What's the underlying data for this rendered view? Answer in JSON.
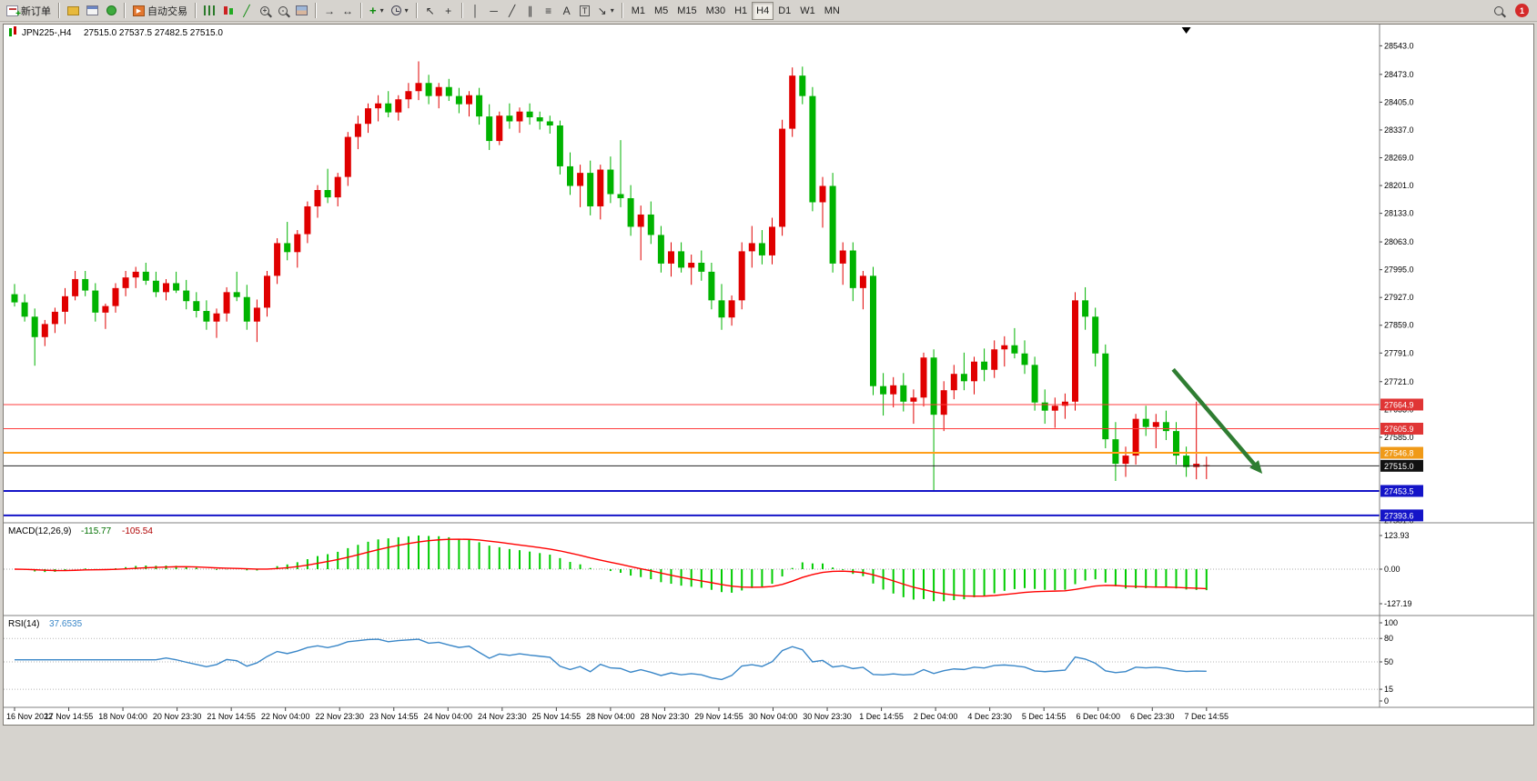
{
  "toolbar": {
    "new_order_label": "新订单",
    "auto_trading_label": "自动交易",
    "timeframes": [
      "M1",
      "M5",
      "M15",
      "M30",
      "H1",
      "H4",
      "D1",
      "W1",
      "MN"
    ],
    "active_timeframe": "H4",
    "notification_count": "1",
    "icons": {
      "play": "▶",
      "line_chart": "╱",
      "plus": "+",
      "minus": "-",
      "auto_scroll": "→",
      "chart_shift": "↔",
      "cursor": "↖",
      "crosshair": "+",
      "vline": "│",
      "hline": "─",
      "trendline": "╱",
      "channel": "∥",
      "fibonacci": "≡",
      "text": "A",
      "label": "T",
      "arrows": "↘",
      "caret": "▾"
    }
  },
  "chart_data": {
    "type": "candlestick",
    "symbol": "JPN225-",
    "period": "H4",
    "title": "JPN225-,H4",
    "ohlc_text": "27515.0 27537.5 27482.5 27515.0",
    "price_range": {
      "min": 27380,
      "max": 28595
    },
    "price_axis_labels": [
      28543,
      28473,
      28405,
      28337,
      28269,
      28201,
      28133,
      28063,
      27995,
      27927,
      27859,
      27791,
      27721,
      27653,
      27585,
      27381
    ],
    "time_labels": [
      "16 Nov 2022",
      "17 Nov 14:55",
      "18 Nov 04:00",
      "20 Nov 23:30",
      "21 Nov 14:55",
      "22 Nov 04:00",
      "22 Nov 23:30",
      "23 Nov 14:55",
      "24 Nov 04:00",
      "24 Nov 23:30",
      "25 Nov 14:55",
      "28 Nov 04:00",
      "28 Nov 23:30",
      "29 Nov 14:55",
      "30 Nov 04:00",
      "30 Nov 23:30",
      "1 Dec 14:55",
      "2 Dec 04:00",
      "4 Dec 23:30",
      "5 Dec 14:55",
      "6 Dec 04:00",
      "6 Dec 23:30",
      "7 Dec 14:55"
    ],
    "colors": {
      "up": "#e00000",
      "down": "#00b300",
      "macd_hist": "#00cc00",
      "macd_signal": "#ff0000",
      "rsi_line": "#3a87c8",
      "arrow": "#2f7d32"
    },
    "candles": [
      [
        27935,
        27960,
        27905,
        27915
      ],
      [
        27915,
        27935,
        27868,
        27880
      ],
      [
        27880,
        27900,
        27760,
        27830
      ],
      [
        27830,
        27872,
        27808,
        27862
      ],
      [
        27862,
        27902,
        27840,
        27892
      ],
      [
        27892,
        27950,
        27862,
        27930
      ],
      [
        27930,
        27992,
        27920,
        27972
      ],
      [
        27972,
        27992,
        27930,
        27944
      ],
      [
        27944,
        27962,
        27868,
        27890
      ],
      [
        27890,
        27912,
        27850,
        27906
      ],
      [
        27906,
        27962,
        27890,
        27950
      ],
      [
        27950,
        27992,
        27930,
        27976
      ],
      [
        27976,
        28002,
        27950,
        27990
      ],
      [
        27990,
        28012,
        27958,
        27968
      ],
      [
        27968,
        27990,
        27928,
        27940
      ],
      [
        27940,
        27972,
        27920,
        27962
      ],
      [
        27962,
        27990,
        27938,
        27944
      ],
      [
        27944,
        27970,
        27898,
        27918
      ],
      [
        27918,
        27940,
        27878,
        27894
      ],
      [
        27894,
        27920,
        27848,
        27868
      ],
      [
        27868,
        27900,
        27828,
        27888
      ],
      [
        27888,
        27952,
        27868,
        27940
      ],
      [
        27940,
        27990,
        27918,
        27928
      ],
      [
        27928,
        27958,
        27848,
        27868
      ],
      [
        27868,
        27922,
        27818,
        27902
      ],
      [
        27902,
        27992,
        27880,
        27980
      ],
      [
        27980,
        28072,
        27960,
        28060
      ],
      [
        28060,
        28112,
        28018,
        28038
      ],
      [
        28038,
        28092,
        28000,
        28082
      ],
      [
        28082,
        28162,
        28060,
        28150
      ],
      [
        28150,
        28202,
        28122,
        28190
      ],
      [
        28190,
        28242,
        28158,
        28172
      ],
      [
        28172,
        28232,
        28150,
        28222
      ],
      [
        28222,
        28332,
        28200,
        28320
      ],
      [
        28320,
        28372,
        28290,
        28352
      ],
      [
        28352,
        28402,
        28330,
        28390
      ],
      [
        28390,
        28422,
        28358,
        28402
      ],
      [
        28402,
        28432,
        28368,
        28380
      ],
      [
        28380,
        28422,
        28360,
        28412
      ],
      [
        28412,
        28452,
        28390,
        28432
      ],
      [
        28432,
        28505,
        28410,
        28452
      ],
      [
        28452,
        28472,
        28400,
        28420
      ],
      [
        28420,
        28452,
        28390,
        28442
      ],
      [
        28442,
        28462,
        28408,
        28420
      ],
      [
        28420,
        28440,
        28378,
        28400
      ],
      [
        28400,
        28432,
        28370,
        28422
      ],
      [
        28422,
        28440,
        28350,
        28370
      ],
      [
        28370,
        28400,
        28288,
        28310
      ],
      [
        28310,
        28382,
        28300,
        28372
      ],
      [
        28372,
        28402,
        28340,
        28358
      ],
      [
        28358,
        28392,
        28330,
        28382
      ],
      [
        28382,
        28402,
        28350,
        28368
      ],
      [
        28368,
        28382,
        28338,
        28358
      ],
      [
        28358,
        28372,
        28328,
        28348
      ],
      [
        28348,
        28360,
        28228,
        28248
      ],
      [
        28248,
        28282,
        28178,
        28200
      ],
      [
        28200,
        28252,
        28148,
        28232
      ],
      [
        28232,
        28262,
        28128,
        28150
      ],
      [
        28150,
        28252,
        28118,
        28240
      ],
      [
        28240,
        28272,
        28158,
        28180
      ],
      [
        28180,
        28312,
        28148,
        28170
      ],
      [
        28170,
        28202,
        28078,
        28100
      ],
      [
        28100,
        28152,
        28018,
        28130
      ],
      [
        28130,
        28162,
        28058,
        28080
      ],
      [
        28080,
        28102,
        27988,
        28010
      ],
      [
        28010,
        28062,
        27978,
        28040
      ],
      [
        28040,
        28062,
        27988,
        28000
      ],
      [
        28000,
        28032,
        27958,
        28012
      ],
      [
        28012,
        28042,
        27968,
        27990
      ],
      [
        27990,
        28012,
        27898,
        27920
      ],
      [
        27920,
        27960,
        27848,
        27878
      ],
      [
        27878,
        27932,
        27858,
        27920
      ],
      [
        27920,
        28062,
        27898,
        28040
      ],
      [
        28040,
        28102,
        28000,
        28060
      ],
      [
        28060,
        28092,
        28008,
        28030
      ],
      [
        28030,
        28122,
        28008,
        28100
      ],
      [
        28100,
        28362,
        28078,
        28340
      ],
      [
        28340,
        28490,
        28320,
        28470
      ],
      [
        28470,
        28492,
        28400,
        28420
      ],
      [
        28420,
        28442,
        28138,
        28160
      ],
      [
        28160,
        28222,
        28098,
        28200
      ],
      [
        28200,
        28232,
        27988,
        28010
      ],
      [
        28010,
        28062,
        27958,
        28042
      ],
      [
        28042,
        28062,
        27918,
        27950
      ],
      [
        27950,
        27992,
        27898,
        27980
      ],
      [
        27980,
        28002,
        27688,
        27710
      ],
      [
        27710,
        27742,
        27638,
        27690
      ],
      [
        27690,
        27732,
        27658,
        27712
      ],
      [
        27712,
        27742,
        27648,
        27672
      ],
      [
        27672,
        27702,
        27618,
        27682
      ],
      [
        27682,
        27792,
        27660,
        27780
      ],
      [
        27780,
        27800,
        27452,
        27640
      ],
      [
        27640,
        27722,
        27600,
        27700
      ],
      [
        27700,
        27762,
        27678,
        27740
      ],
      [
        27740,
        27792,
        27700,
        27722
      ],
      [
        27722,
        27782,
        27690,
        27770
      ],
      [
        27770,
        27802,
        27722,
        27750
      ],
      [
        27750,
        27822,
        27730,
        27800
      ],
      [
        27800,
        27832,
        27758,
        27810
      ],
      [
        27810,
        27852,
        27778,
        27790
      ],
      [
        27790,
        27822,
        27740,
        27762
      ],
      [
        27762,
        27782,
        27650,
        27670
      ],
      [
        27670,
        27702,
        27618,
        27650
      ],
      [
        27650,
        27682,
        27608,
        27662
      ],
      [
        27662,
        27692,
        27630,
        27672
      ],
      [
        27672,
        27940,
        27650,
        27920
      ],
      [
        27920,
        27952,
        27848,
        27880
      ],
      [
        27880,
        27902,
        27758,
        27790
      ],
      [
        27790,
        27812,
        27558,
        27580
      ],
      [
        27580,
        27622,
        27478,
        27520
      ],
      [
        27520,
        27562,
        27488,
        27540
      ],
      [
        27540,
        27642,
        27518,
        27630
      ],
      [
        27630,
        27662,
        27588,
        27610
      ],
      [
        27610,
        27642,
        27558,
        27622
      ],
      [
        27622,
        27650,
        27578,
        27600
      ],
      [
        27600,
        27622,
        27518,
        27540
      ],
      [
        27540,
        27562,
        27488,
        27512
      ],
      [
        27512,
        27672,
        27482,
        27520
      ],
      [
        27515,
        27537.5,
        27482.5,
        27515
      ]
    ],
    "hlines": [
      {
        "price": 27664.9,
        "color": "#ff3c3c",
        "width": 1,
        "tag": "27664.9",
        "tag_bg": "#e03535"
      },
      {
        "price": 27605.9,
        "color": "#ff3c3c",
        "width": 1,
        "tag": "27605.9",
        "tag_bg": "#e03535"
      },
      {
        "price": 27546.8,
        "color": "#ff9f1a",
        "width": 2,
        "tag": "27546.8",
        "tag_bg": "#f09a18"
      },
      {
        "price": 27515.0,
        "color": "#222222",
        "width": 1,
        "tag": "27515.0",
        "tag_bg": "#111111"
      },
      {
        "price": 27453.5,
        "color": "#1414c8",
        "width": 2,
        "tag": "27453.5",
        "tag_bg": "#1414c8"
      },
      {
        "price": 27393.6,
        "color": "#1414c8",
        "width": 2,
        "tag": "27393.6",
        "tag_bg": "#1414c8"
      }
    ],
    "arrow": {
      "i1": 114.7,
      "p1": 27751,
      "i2": 123,
      "p2": 27511
    },
    "shift_marker_index": 116,
    "macd": {
      "name": "MACD(12,26,9)",
      "value1": "-115.77",
      "value2": "-105.54",
      "fast": 12,
      "slow": 26,
      "signal": 9,
      "axis_labels": [
        "123.93",
        "0.00",
        "-127.19"
      ]
    },
    "rsi": {
      "name": "RSI(14)",
      "value": "37.6535",
      "period": 14,
      "axis_labels": [
        100,
        80,
        50,
        15,
        0
      ],
      "levels": [
        80,
        50,
        15
      ]
    }
  }
}
